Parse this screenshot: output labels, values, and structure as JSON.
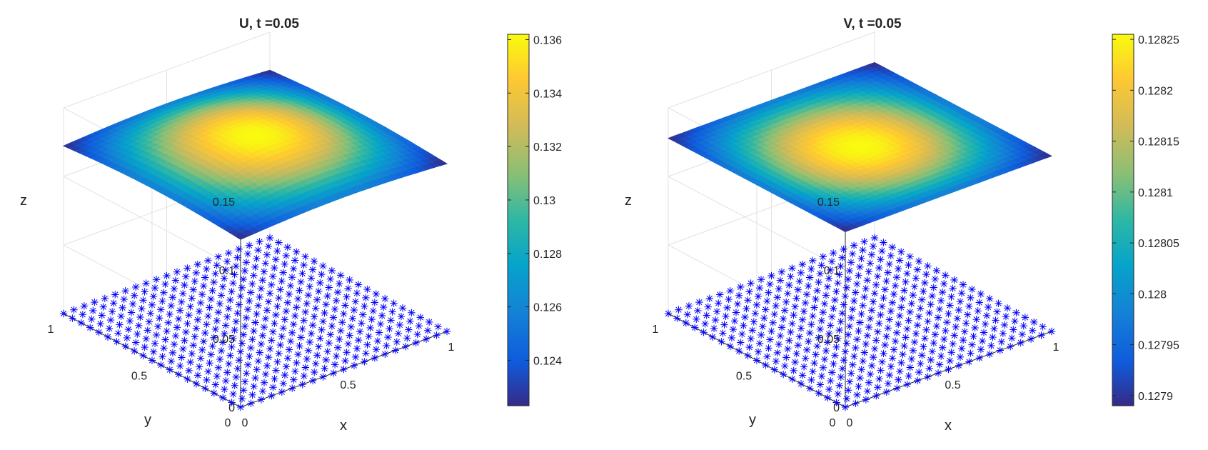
{
  "chart_data": [
    {
      "type": "surface3d",
      "title": "U, t =0.05",
      "xlabel": "x",
      "ylabel": "y",
      "zlabel": "z",
      "x_ticks": [
        "0",
        "0.5",
        "1"
      ],
      "y_ticks": [
        "0",
        "0.5",
        "1"
      ],
      "z_ticks": [
        "0",
        "0.05",
        "0.1",
        "0.15"
      ],
      "xlim": [
        0,
        1
      ],
      "ylim": [
        0,
        1
      ],
      "zlim": [
        0,
        0.15
      ],
      "colorbar_ticks": [
        "0.124",
        "0.126",
        "0.128",
        "0.13",
        "0.132",
        "0.134",
        "0.136"
      ],
      "color_range": [
        0.1223,
        0.1362
      ],
      "surface_center": 0.1362,
      "surface_corner": 0.1223,
      "surface_edge_mid": 0.1255,
      "colormap": "parula",
      "grid": true,
      "marker_color": "#0000ff"
    },
    {
      "type": "surface3d",
      "title": "V, t =0.05",
      "xlabel": "x",
      "ylabel": "y",
      "zlabel": "z",
      "x_ticks": [
        "0",
        "0.5",
        "1"
      ],
      "y_ticks": [
        "0",
        "0.5",
        "1"
      ],
      "z_ticks": [
        "0",
        "0.05",
        "0.1",
        "0.15"
      ],
      "xlim": [
        0,
        1
      ],
      "ylim": [
        0,
        1
      ],
      "zlim": [
        0,
        0.15
      ],
      "colorbar_ticks": [
        "0.1279",
        "0.12795",
        "0.128",
        "0.12805",
        "0.1281",
        "0.12815",
        "0.1282",
        "0.12825"
      ],
      "color_range": [
        0.12789,
        0.128255
      ],
      "surface_center": 0.128255,
      "surface_corner": 0.12789,
      "surface_edge_mid": 0.12797,
      "colormap": "parula",
      "grid": true,
      "marker_color": "#0000ff"
    }
  ]
}
